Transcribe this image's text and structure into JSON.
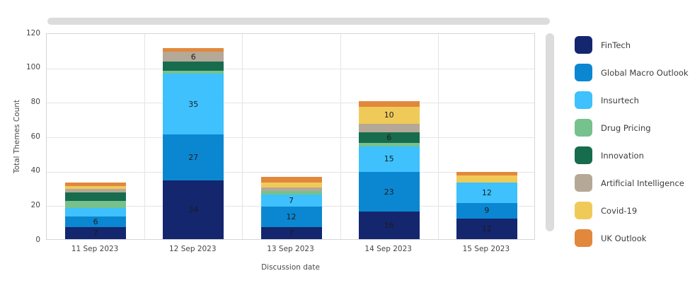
{
  "chart_data": {
    "type": "bar",
    "stacked": true,
    "xlabel": "Discussion date",
    "ylabel": "Total Themes Count",
    "ylim": [
      0,
      120
    ],
    "yticks": [
      0,
      20,
      40,
      60,
      80,
      100,
      120
    ],
    "grid": true,
    "legend_position": "right",
    "label_min_value": 6,
    "categories": [
      "11 Sep 2023",
      "12 Sep 2023",
      "13 Sep 2023",
      "14 Sep 2023",
      "15 Sep 2023"
    ],
    "series": [
      {
        "name": "FinTech",
        "color": "#14266e",
        "values": [
          7,
          34,
          7,
          16,
          12
        ]
      },
      {
        "name": "Global Macro Outlook",
        "color": "#0b87d1",
        "values": [
          6,
          27,
          12,
          23,
          9
        ]
      },
      {
        "name": "Insurtech",
        "color": "#3ec1fc",
        "values": [
          5,
          35,
          7,
          15,
          12
        ]
      },
      {
        "name": "Drug Pricing",
        "color": "#76c18d",
        "values": [
          4,
          2,
          2,
          2,
          0
        ]
      },
      {
        "name": "Innovation",
        "color": "#176c4e",
        "values": [
          5,
          5,
          0,
          6,
          0
        ]
      },
      {
        "name": "Artificial Intelligence",
        "color": "#b5a896",
        "values": [
          2,
          6,
          2,
          5,
          0
        ]
      },
      {
        "name": "Covid-19",
        "color": "#f0ca59",
        "values": [
          2,
          0,
          3,
          10,
          4
        ]
      },
      {
        "name": "UK Outlook",
        "color": "#e2883c",
        "values": [
          2,
          2,
          3,
          3,
          2
        ]
      }
    ]
  },
  "scrollbar_color": "#dcdcdc"
}
